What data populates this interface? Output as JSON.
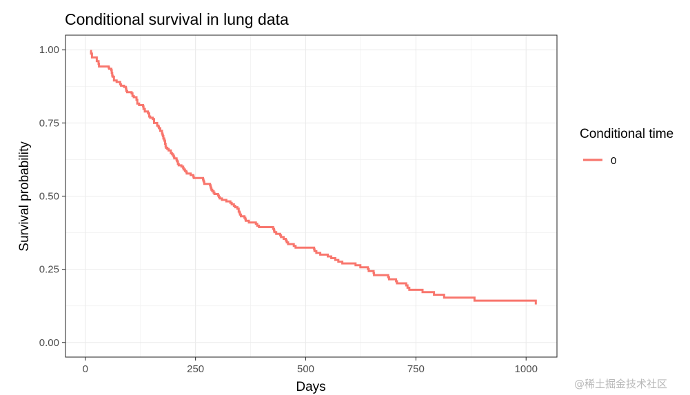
{
  "chart_data": {
    "type": "line",
    "title": "Conditional survival in lung data",
    "xlabel": "Days",
    "ylabel": "Survival probability",
    "xlim": [
      -45,
      1070
    ],
    "ylim": [
      -0.05,
      1.05
    ],
    "x_ticks": [
      0,
      250,
      500,
      750,
      1000
    ],
    "x_tick_labels": [
      "0",
      "250",
      "500",
      "750",
      "1000"
    ],
    "y_ticks": [
      0.0,
      0.25,
      0.5,
      0.75,
      1.0
    ],
    "y_tick_labels": [
      "0.00",
      "0.25",
      "0.50",
      "0.75",
      "1.00"
    ],
    "grid": true,
    "legend_title": "Conditional time",
    "legend_position": "right",
    "series": [
      {
        "name": "0",
        "color": "#F8766D",
        "x": [
          11,
          13,
          15,
          26,
          30,
          31,
          53,
          54,
          59,
          60,
          61,
          62,
          65,
          71,
          79,
          81,
          88,
          92,
          93,
          95,
          105,
          107,
          110,
          116,
          118,
          122,
          131,
          132,
          135,
          142,
          144,
          145,
          147,
          153,
          156,
          163,
          166,
          167,
          170,
          174,
          175,
          176,
          177,
          179,
          180,
          181,
          182,
          183,
          186,
          189,
          194,
          197,
          199,
          201,
          202,
          207,
          208,
          210,
          212,
          218,
          222,
          223,
          226,
          229,
          230,
          239,
          245,
          246,
          267,
          268,
          269,
          270,
          283,
          284,
          285,
          286,
          288,
          291,
          293,
          301,
          303,
          305,
          310,
          320,
          329,
          332,
          337,
          340,
          345,
          348,
          350,
          351,
          353,
          361,
          363,
          364,
          371,
          387,
          390,
          394,
          426,
          428,
          429,
          433,
          442,
          444,
          450,
          455,
          457,
          460,
          473,
          477,
          519,
          520,
          524,
          533,
          550,
          558,
          567,
          574,
          583,
          613,
          624,
          641,
          643,
          654,
          655,
          687,
          689,
          705,
          707,
          728,
          731,
          735,
          765,
          791,
          814,
          883,
          1022
        ],
        "y": [
          0.996,
          0.987,
          0.974,
          0.961,
          0.952,
          0.943,
          0.939,
          0.935,
          0.93,
          0.921,
          0.912,
          0.908,
          0.895,
          0.89,
          0.882,
          0.877,
          0.873,
          0.868,
          0.86,
          0.855,
          0.851,
          0.842,
          0.838,
          0.829,
          0.816,
          0.811,
          0.807,
          0.798,
          0.789,
          0.785,
          0.78,
          0.772,
          0.768,
          0.763,
          0.75,
          0.741,
          0.737,
          0.732,
          0.723,
          0.714,
          0.71,
          0.705,
          0.697,
          0.692,
          0.688,
          0.679,
          0.67,
          0.665,
          0.661,
          0.656,
          0.647,
          0.643,
          0.638,
          0.633,
          0.629,
          0.624,
          0.619,
          0.61,
          0.605,
          0.601,
          0.596,
          0.591,
          0.586,
          0.582,
          0.577,
          0.572,
          0.567,
          0.562,
          0.557,
          0.552,
          0.547,
          0.542,
          0.537,
          0.532,
          0.527,
          0.522,
          0.517,
          0.512,
          0.507,
          0.502,
          0.497,
          0.492,
          0.487,
          0.482,
          0.477,
          0.472,
          0.467,
          0.462,
          0.457,
          0.447,
          0.442,
          0.437,
          0.431,
          0.426,
          0.421,
          0.416,
          0.41,
          0.405,
          0.399,
          0.394,
          0.388,
          0.383,
          0.377,
          0.371,
          0.366,
          0.36,
          0.354,
          0.348,
          0.342,
          0.336,
          0.33,
          0.324,
          0.318,
          0.312,
          0.306,
          0.3,
          0.294,
          0.288,
          0.282,
          0.276,
          0.27,
          0.264,
          0.257,
          0.251,
          0.244,
          0.237,
          0.23,
          0.223,
          0.216,
          0.209,
          0.202,
          0.195,
          0.187,
          0.18,
          0.172,
          0.163,
          0.153,
          0.143,
          0.13
        ]
      }
    ]
  },
  "watermark": "@稀土掘金技术社区"
}
